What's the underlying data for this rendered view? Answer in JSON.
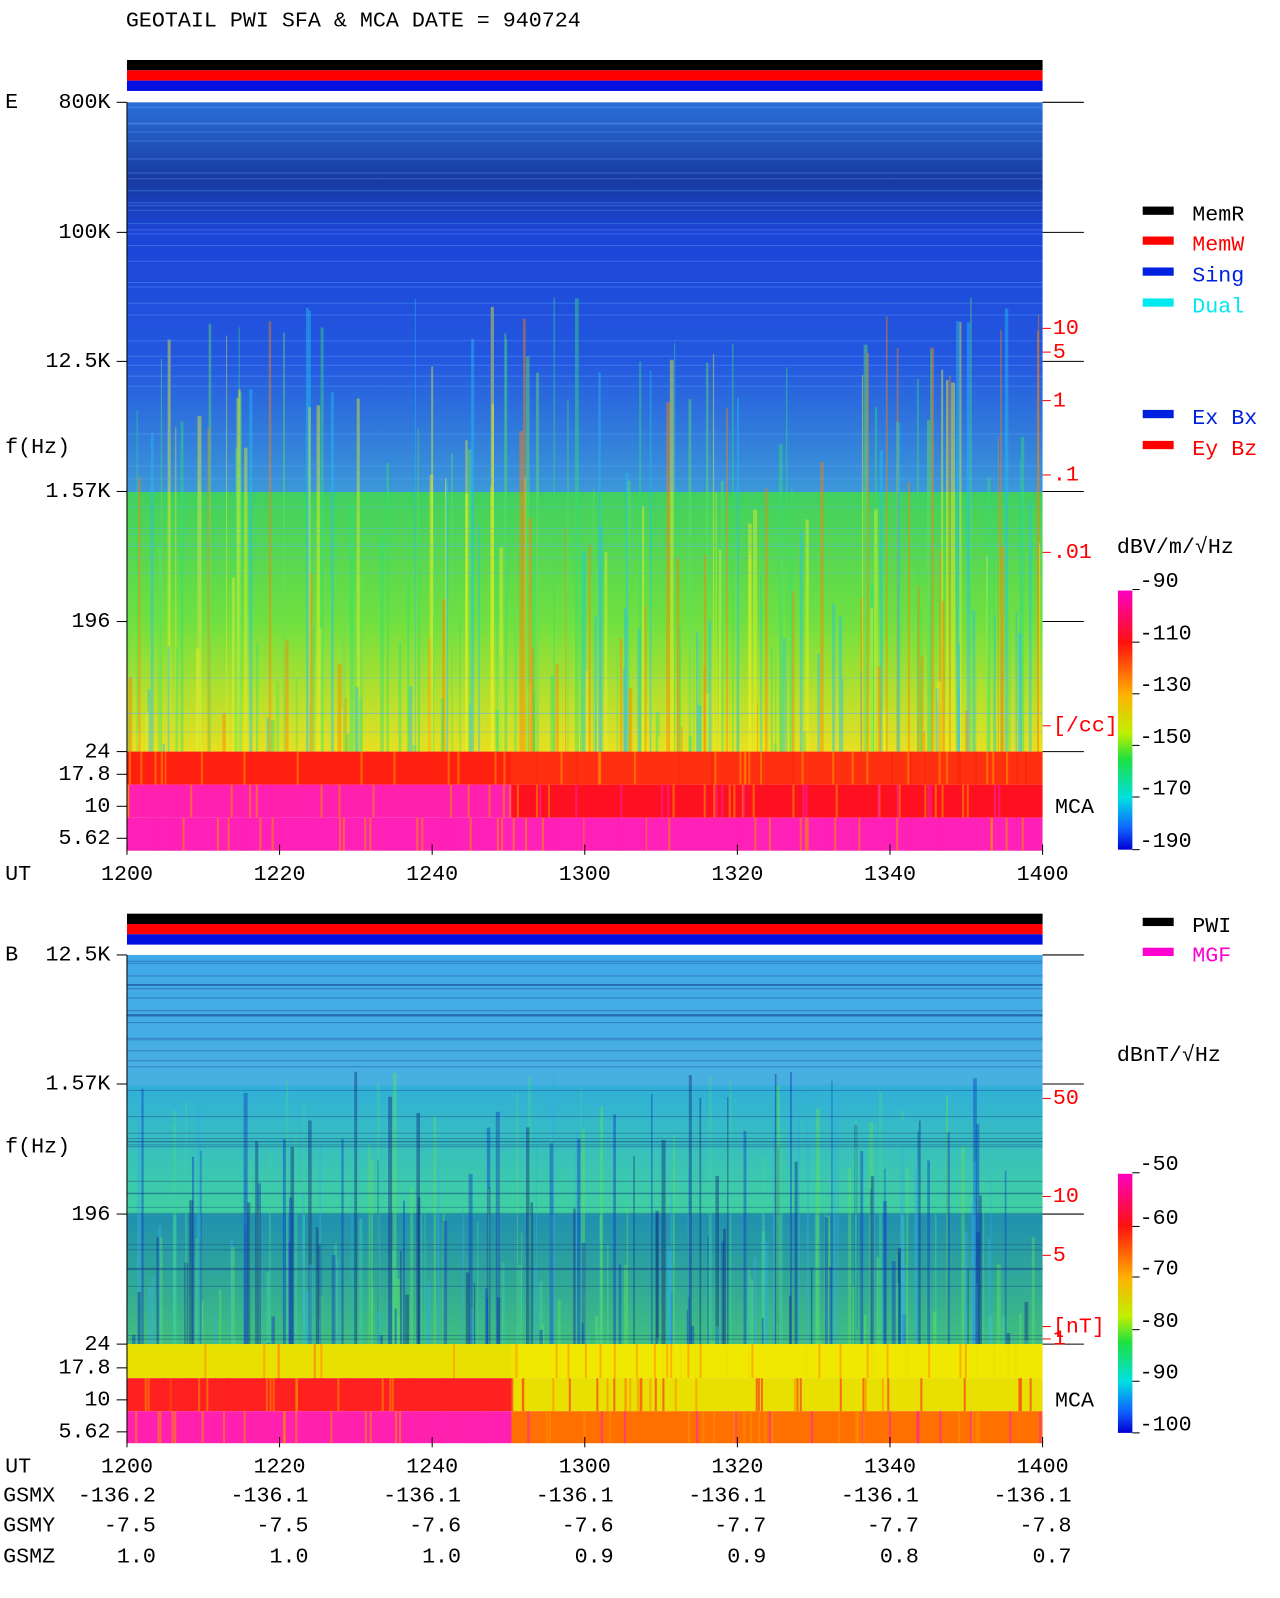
{
  "title": "GEOTAIL  PWI SFA & MCA   DATE = 940724",
  "panels": [
    {
      "label": "E",
      "freq_ticks": [
        "800K",
        "100K",
        "12.5K",
        "1.57K",
        "196",
        "24",
        "17.8",
        "10",
        "5.62"
      ],
      "f_label": "f(Hz)",
      "ut_label": "UT",
      "time_ticks": [
        "1200",
        "1220",
        "1240",
        "1300",
        "1320",
        "1340",
        "1400"
      ],
      "mca_label": "MCA",
      "right_scale": [
        "10",
        "5",
        "1",
        ".1",
        ".01",
        "[/cc]"
      ],
      "colorbar_unit": "dBV/m/√Hz",
      "colorbar_ticks": [
        "-90",
        "-110",
        "-130",
        "-150",
        "-170",
        "-190"
      ],
      "legend": [
        {
          "label": "MemR",
          "color": "#000000"
        },
        {
          "label": "MemW",
          "color": "#ff0000"
        },
        {
          "label": "Sing",
          "color": "#0020e0"
        },
        {
          "label": "Dual",
          "color": "#00e8f0"
        },
        {
          "label": "Ex Bx",
          "color": "#0020e0"
        },
        {
          "label": "Ey Bz",
          "color": "#ff0000"
        }
      ]
    },
    {
      "label": "B",
      "freq_ticks": [
        "12.5K",
        "1.57K",
        "196",
        "24",
        "17.8",
        "10",
        "5.62"
      ],
      "f_label": "f(Hz)",
      "ut_label": "UT",
      "time_ticks": [
        "1200",
        "1220",
        "1240",
        "1300",
        "1320",
        "1340",
        "1400"
      ],
      "mca_label": "MCA",
      "right_scale": [
        "50",
        "10",
        "5",
        "1",
        "[nT]"
      ],
      "colorbar_unit": "dBnT/√Hz",
      "colorbar_ticks": [
        "-50",
        "-60",
        "-70",
        "-80",
        "-90",
        "-100"
      ],
      "legend": [
        {
          "label": "PWI",
          "color": "#000000"
        },
        {
          "label": "MGF",
          "color": "#ff00d0"
        }
      ]
    }
  ],
  "orbit": [
    {
      "label": "GSMX",
      "values": [
        "-136.2",
        "-136.1",
        "-136.1",
        "-136.1",
        "-136.1",
        "-136.1",
        "-136.1"
      ]
    },
    {
      "label": "GSMY",
      "values": [
        "-7.5",
        "-7.5",
        "-7.6",
        "-7.6",
        "-7.7",
        "-7.7",
        "-7.8"
      ]
    },
    {
      "label": "GSMZ",
      "values": [
        "1.0",
        "1.0",
        "1.0",
        "0.9",
        "0.9",
        "0.8",
        "0.7"
      ]
    }
  ]
}
